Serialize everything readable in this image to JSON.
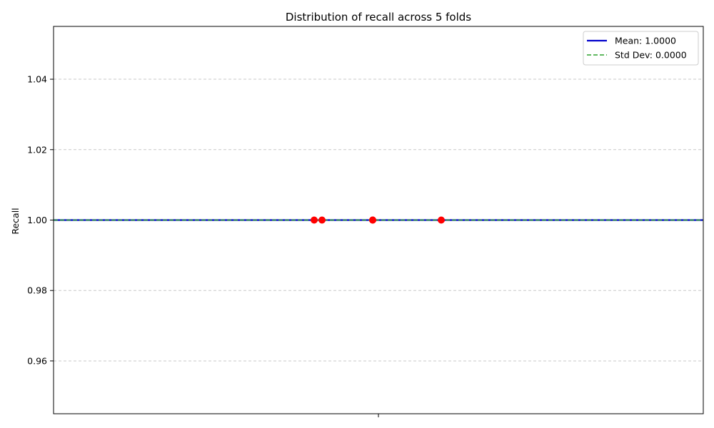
{
  "chart_data": {
    "type": "scatter",
    "title": "Distribution of recall across 5 folds",
    "xlabel": "",
    "ylabel": "Recall",
    "ylim": [
      0.945,
      1.055
    ],
    "yticks": [
      0.96,
      0.98,
      1.0,
      1.02,
      1.04
    ],
    "ytick_labels": [
      "0.96",
      "0.98",
      "1.00",
      "1.02",
      "1.04"
    ],
    "grid": "y-dashed",
    "legend_position": "top-right",
    "points": [
      {
        "y": 1.0
      },
      {
        "y": 1.0
      },
      {
        "y": 1.0
      },
      {
        "y": 1.0
      },
      {
        "y": 1.0
      }
    ],
    "reference_lines": [
      {
        "label": "Mean: 1.0000",
        "y": 1.0,
        "color": "#0000cc",
        "style": "solid"
      },
      {
        "label": "Std Dev: 0.0000",
        "y": 1.0,
        "color": "#2ca02c",
        "style": "dashed"
      }
    ],
    "colors": {
      "points": "#ff0000",
      "grid": "#c8c8c8"
    }
  }
}
